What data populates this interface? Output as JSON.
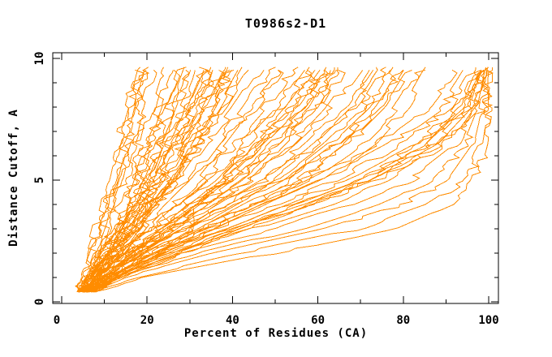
{
  "chart_data": {
    "type": "line",
    "title": "T0986s2-D1",
    "xlabel": "Percent of Residues (CA)",
    "ylabel": "Distance Cutoff, A",
    "xlim": [
      -2,
      102
    ],
    "ylim": [
      -0.05,
      10.25
    ],
    "x_major_ticks": [
      0,
      20,
      40,
      60,
      80,
      100
    ],
    "x_minor_ticks": [
      10,
      30,
      50,
      70,
      90
    ],
    "y_major_ticks": [
      0,
      5,
      10
    ],
    "y_minor_ticks": [
      1,
      2,
      3,
      4,
      6,
      7,
      8,
      9
    ],
    "grid": false,
    "legend": false,
    "line_color": "#FF8C00",
    "frame_color": "#000000",
    "description": "Many overlapping jagged model-accuracy curves: percent of CA residues (x) within each distance cutoff in Angstroms (y). Curves start near 4-8% at cutoff 0.4 and fan out to 17-100% at cutoff 9.7.",
    "cutoff_anchors": [
      0.4,
      1,
      2,
      3,
      4,
      5,
      6.5,
      8,
      9.7
    ],
    "series": [
      [
        4,
        5,
        6.5,
        8,
        9.5,
        11,
        13,
        15,
        17.5
      ],
      [
        4.2,
        5.5,
        7,
        9,
        10.5,
        12,
        14,
        16,
        18.5
      ],
      [
        4.5,
        6,
        8,
        10,
        12,
        13.5,
        15.5,
        17.5,
        19.5
      ],
      [
        5,
        6.5,
        8.5,
        10.5,
        12.5,
        14.5,
        16.5,
        18.5,
        20.5
      ],
      [
        4,
        5,
        7,
        9,
        11,
        13,
        15,
        17,
        19
      ],
      [
        4.8,
        6.2,
        8.8,
        11,
        13,
        15,
        17,
        19,
        21.5
      ],
      [
        4,
        6,
        9,
        12,
        14,
        16,
        18,
        21,
        24
      ],
      [
        4.3,
        6.5,
        10,
        13,
        15,
        17,
        19.5,
        22.5,
        26
      ],
      [
        4.6,
        7,
        10.5,
        13.5,
        15.5,
        18,
        21,
        24,
        27.5
      ],
      [
        5,
        7.5,
        11,
        14,
        16.5,
        19,
        22,
        25.5,
        29
      ],
      [
        5.3,
        8,
        11.5,
        14.5,
        17,
        20,
        23.5,
        27,
        30.5
      ],
      [
        4,
        6.8,
        10.8,
        14,
        17.5,
        20.5,
        24,
        28,
        32
      ],
      [
        4.5,
        7.2,
        11.2,
        15,
        18,
        21.5,
        25,
        29.5,
        33.5
      ],
      [
        5,
        7.6,
        11.6,
        15.5,
        19,
        22.5,
        26.5,
        31,
        35
      ],
      [
        5.5,
        8.2,
        12.2,
        16,
        19.5,
        23.5,
        27.5,
        32,
        36.5
      ],
      [
        4.2,
        7,
        12.6,
        16.5,
        17,
        24,
        28.5,
        33.5,
        38
      ],
      [
        4.8,
        7.8,
        13,
        17,
        21,
        25,
        29.5,
        34.5,
        39.5
      ],
      [
        5.2,
        8.4,
        13.5,
        17.8,
        21.8,
        26,
        30.5,
        35.5,
        40.5
      ],
      [
        4,
        6.4,
        9.6,
        12.8,
        15.2,
        17.6,
        20.8,
        24.4,
        28
      ],
      [
        4.4,
        6.9,
        10.2,
        13.2,
        16.2,
        19.2,
        22.8,
        26.6,
        30.6
      ],
      [
        4.9,
        7.4,
        10.9,
        14.2,
        17.4,
        20.8,
        24.6,
        28.8,
        33
      ],
      [
        5.4,
        8,
        11.8,
        15.4,
        18.8,
        22.4,
        26.4,
        30.9,
        35.4
      ],
      [
        4.1,
        6.6,
        10.4,
        14.6,
        18.4,
        22,
        26,
        30.4,
        34.9
      ],
      [
        4.7,
        7.3,
        11.4,
        15.8,
        19.8,
        23.8,
        28,
        32.8,
        37.6
      ],
      [
        5.1,
        8.1,
        12.4,
        16.8,
        21.2,
        25.6,
        30.2,
        35.2,
        40.2
      ],
      [
        5.6,
        8.8,
        13.2,
        17.6,
        22,
        26.6,
        31.4,
        36.6,
        42
      ],
      [
        4.3,
        7.1,
        11.9,
        16.2,
        20.6,
        25,
        29.8,
        34.9,
        40
      ],
      [
        5.8,
        9,
        13.8,
        18.4,
        22.8,
        27.4,
        32.4,
        37.8,
        43.4
      ],
      [
        4,
        7,
        12,
        17,
        21.5,
        26,
        31.5,
        38,
        44
      ],
      [
        4.5,
        7.6,
        13,
        18,
        23,
        28,
        34,
        40.5,
        47
      ],
      [
        5,
        8.2,
        14,
        19.2,
        24.4,
        30,
        36.5,
        43,
        49.5
      ],
      [
        5.5,
        8.8,
        15,
        20.4,
        26,
        32,
        39,
        45.5,
        52
      ],
      [
        4.2,
        7.3,
        13.6,
        19.8,
        20.4,
        31,
        37.8,
        44.8,
        51.8
      ],
      [
        4.8,
        8,
        14.6,
        21,
        27,
        33.5,
        40.5,
        48,
        54.5
      ],
      [
        5.3,
        8.6,
        15.6,
        22.2,
        28.6,
        35,
        42.5,
        50,
        57
      ],
      [
        5.9,
        9.4,
        16.4,
        23.4,
        30,
        37,
        45,
        52.5,
        59.5
      ],
      [
        4.4,
        7.8,
        14.2,
        21.6,
        28,
        35.5,
        43.5,
        51.5,
        58.5
      ],
      [
        5.1,
        8.5,
        15.2,
        22.8,
        29.6,
        37.5,
        46,
        54,
        61
      ],
      [
        5.7,
        9.2,
        16.8,
        24.6,
        31.6,
        39.5,
        48,
        56.5,
        63.5
      ],
      [
        6.2,
        10,
        17.6,
        25.8,
        33,
        41,
        50,
        58.5,
        64
      ],
      [
        4.6,
        8.3,
        15.8,
        23.2,
        30.4,
        38,
        46.5,
        55,
        62
      ],
      [
        6,
        9.8,
        17,
        24.2,
        31,
        38.5,
        47,
        55.5,
        62.5
      ],
      [
        4.9,
        8.9,
        16,
        24,
        31.8,
        40,
        49,
        57.5,
        63
      ],
      [
        5.2,
        9.6,
        17.2,
        25.4,
        33.4,
        42,
        51,
        59,
        64.5
      ],
      [
        6.4,
        10.4,
        18,
        26.4,
        34.4,
        43,
        52,
        60,
        65.5
      ],
      [
        5.5,
        10.8,
        18.8,
        27.2,
        35.6,
        44.5,
        53.5,
        61.5,
        66
      ],
      [
        5,
        9,
        17,
        26,
        35,
        44,
        54,
        63,
        70
      ],
      [
        5.5,
        9.6,
        18.2,
        27.6,
        37,
        46.5,
        57,
        66,
        72.5
      ],
      [
        6,
        10.2,
        19.4,
        29.2,
        39,
        49,
        60,
        68.5,
        75
      ],
      [
        6.5,
        11,
        20.6,
        30.8,
        41,
        51.5,
        62.5,
        71.5,
        77.5
      ],
      [
        5.2,
        9.3,
        18.8,
        28.4,
        38,
        48,
        59,
        68,
        74
      ],
      [
        5.8,
        10.6,
        20,
        30,
        40,
        50.5,
        61.5,
        70.5,
        76.5
      ],
      [
        6.2,
        11.4,
        21.2,
        32,
        42.5,
        53.5,
        65,
        73.5,
        80
      ],
      [
        6.8,
        12,
        22.4,
        33.6,
        44.5,
        56,
        67.5,
        76,
        82
      ],
      [
        5.4,
        10,
        19.8,
        31,
        31.6,
        53,
        64.5,
        73,
        79
      ],
      [
        6.6,
        11.8,
        22,
        33,
        44,
        55.5,
        67,
        75.5,
        81.5
      ],
      [
        7,
        12.6,
        23.2,
        35,
        46.5,
        58.5,
        70,
        78.5,
        84.5
      ],
      [
        7.4,
        13.2,
        24.4,
        36.4,
        48.5,
        61,
        73,
        81,
        86.5
      ],
      [
        5,
        10,
        20,
        32,
        45,
        58,
        74,
        86,
        93
      ],
      [
        5.5,
        10.8,
        21.5,
        34,
        47.5,
        61,
        77,
        89,
        95
      ],
      [
        6,
        11.6,
        23,
        36,
        50,
        64,
        80,
        91,
        96.5
      ],
      [
        6.5,
        12.4,
        24.5,
        38,
        52.5,
        67,
        83,
        93,
        97.5
      ],
      [
        7,
        13.2,
        26,
        40,
        55,
        70,
        85.5,
        94.5,
        98.5
      ],
      [
        7.5,
        14,
        27.5,
        42,
        57.5,
        72.5,
        88,
        96,
        99.5
      ],
      [
        6.2,
        12,
        25,
        39,
        54,
        69,
        84.5,
        94,
        98
      ],
      [
        6.8,
        13,
        26.5,
        41,
        56.5,
        71.5,
        87,
        95.5,
        99
      ],
      [
        7.2,
        13.6,
        28,
        43,
        59,
        74,
        89,
        97,
        100
      ],
      [
        5,
        10,
        22,
        40,
        58,
        72,
        86,
        94,
        98
      ],
      [
        5.5,
        11,
        25,
        45,
        63,
        77,
        90,
        96,
        99
      ],
      [
        6,
        12,
        28,
        50,
        68,
        82,
        93,
        97.5,
        99.5
      ],
      [
        6.5,
        13.5,
        32,
        56,
        74,
        87,
        95,
        98.5,
        100
      ],
      [
        7,
        15,
        36,
        62,
        80,
        91,
        97,
        99,
        100
      ],
      [
        7.5,
        17,
        42,
        70,
        86,
        95,
        98.5,
        99.8,
        100
      ],
      [
        8,
        20,
        50,
        78,
        91,
        97,
        99.3,
        100,
        100
      ]
    ]
  }
}
